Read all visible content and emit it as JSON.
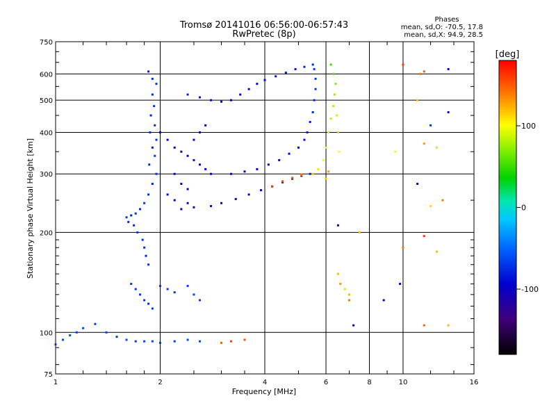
{
  "chart_data": {
    "type": "scatter",
    "title": "Tromsø 20141016 06:56:00-06:57:43",
    "subtitle": "RwPretec (8p)",
    "xlabel": "Frequency [MHz]",
    "ylabel": "Stationary phase Virtual Height [km]",
    "xscale": "log",
    "yscale": "log",
    "xlim": [
      1,
      16
    ],
    "ylim": [
      75,
      750
    ],
    "x_ticks": [
      1,
      2,
      4,
      6,
      8,
      10,
      16
    ],
    "y_ticks": [
      75,
      100,
      200,
      300,
      400,
      500,
      600,
      750
    ],
    "x_grid": [
      2,
      4,
      6,
      8,
      10
    ],
    "y_grid": [
      100,
      200,
      300,
      400,
      500,
      600
    ],
    "grid": true,
    "phases": {
      "title": "Phases",
      "o_line": "mean, sd,O: -70.5, 17.8",
      "x_line": "mean, sd,X:  94.9, 28.5"
    },
    "colorbar": {
      "label": "[deg]",
      "range": [
        -180,
        180
      ],
      "ticks": [
        100,
        0,
        -100
      ],
      "placement": "right"
    },
    "series": [
      {
        "points": [
          [
            1.85,
            610,
            -80
          ],
          [
            1.9,
            580,
            -75
          ],
          [
            1.95,
            560,
            -70
          ],
          [
            1.9,
            520,
            -78
          ],
          [
            1.92,
            480,
            -72
          ],
          [
            1.88,
            450,
            -80
          ],
          [
            1.93,
            420,
            -76
          ],
          [
            1.87,
            400,
            -70
          ],
          [
            1.95,
            380,
            -74
          ],
          [
            1.9,
            360,
            -82
          ],
          [
            1.93,
            340,
            -70
          ],
          [
            1.86,
            320,
            -78
          ],
          [
            1.95,
            300,
            -72
          ],
          [
            1.9,
            280,
            -80
          ],
          [
            1.85,
            260,
            -74
          ],
          [
            1.8,
            245,
            -70
          ],
          [
            1.75,
            235,
            -76
          ],
          [
            1.7,
            228,
            -72
          ],
          [
            1.65,
            225,
            -80
          ],
          [
            1.6,
            222,
            -70
          ],
          [
            1.62,
            215,
            -75
          ],
          [
            1.68,
            210,
            -78
          ],
          [
            1.72,
            200,
            -70
          ],
          [
            1.78,
            190,
            -74
          ],
          [
            1.8,
            180,
            -72
          ],
          [
            1.82,
            170,
            -80
          ],
          [
            1.85,
            160,
            -70
          ]
        ]
      },
      {
        "points": [
          [
            2.0,
            400,
            -90
          ],
          [
            2.1,
            380,
            -95
          ],
          [
            2.2,
            360,
            -100
          ],
          [
            2.3,
            350,
            -105
          ],
          [
            2.4,
            340,
            -100
          ],
          [
            2.5,
            330,
            -110
          ],
          [
            2.6,
            320,
            -105
          ],
          [
            2.7,
            310,
            -100
          ],
          [
            2.8,
            300,
            -95
          ],
          [
            2.5,
            380,
            -110
          ],
          [
            2.6,
            400,
            -105
          ],
          [
            2.7,
            420,
            -100
          ],
          [
            2.2,
            300,
            -90
          ],
          [
            2.3,
            280,
            -95
          ],
          [
            2.4,
            270,
            -100
          ],
          [
            2.1,
            260,
            -90
          ],
          [
            2.2,
            250,
            -95
          ],
          [
            2.4,
            245,
            -100
          ]
        ]
      },
      {
        "points": [
          [
            2.3,
            235,
            -100
          ],
          [
            2.5,
            238,
            -105
          ],
          [
            2.8,
            240,
            -110
          ],
          [
            3.0,
            245,
            -110
          ],
          [
            3.3,
            252,
            -108
          ],
          [
            3.6,
            260,
            -105
          ],
          [
            3.9,
            268,
            -100
          ],
          [
            4.2,
            275,
            -100
          ],
          [
            4.5,
            283,
            -95
          ],
          [
            4.8,
            290,
            -90
          ],
          [
            5.1,
            296,
            -85
          ],
          [
            5.4,
            300,
            -80
          ]
        ]
      },
      {
        "points": [
          [
            3.2,
            300,
            -100
          ],
          [
            3.5,
            305,
            -100
          ],
          [
            3.8,
            310,
            -95
          ],
          [
            4.1,
            320,
            -92
          ],
          [
            4.4,
            330,
            -90
          ],
          [
            4.7,
            345,
            -90
          ],
          [
            5.0,
            360,
            -88
          ],
          [
            5.2,
            380,
            -85
          ],
          [
            5.3,
            400,
            -82
          ],
          [
            5.4,
            430,
            -80
          ],
          [
            5.5,
            460,
            -78
          ],
          [
            5.55,
            500,
            -75
          ],
          [
            5.6,
            540,
            -72
          ],
          [
            5.6,
            580,
            -70
          ],
          [
            5.55,
            620,
            -68
          ]
        ]
      },
      {
        "points": [
          [
            2.4,
            520,
            -80
          ],
          [
            2.6,
            510,
            -85
          ],
          [
            2.8,
            500,
            -90
          ],
          [
            3.0,
            495,
            -90
          ],
          [
            3.2,
            500,
            -95
          ],
          [
            3.4,
            520,
            -95
          ],
          [
            3.6,
            540,
            -90
          ],
          [
            3.8,
            560,
            -92
          ],
          [
            4.0,
            575,
            -90
          ],
          [
            4.3,
            590,
            -88
          ],
          [
            4.6,
            605,
            -85
          ],
          [
            4.9,
            620,
            -85
          ],
          [
            5.2,
            630,
            -80
          ],
          [
            5.5,
            640,
            -75
          ]
        ]
      },
      {
        "points": [
          [
            4.2,
            275,
            160
          ],
          [
            4.5,
            285,
            155
          ],
          [
            4.8,
            292,
            150
          ],
          [
            5.1,
            298,
            140
          ],
          [
            5.5,
            300,
            120
          ],
          [
            5.7,
            310,
            110
          ],
          [
            5.9,
            330,
            100
          ],
          [
            6.0,
            360,
            95
          ],
          [
            6.1,
            400,
            90
          ],
          [
            6.2,
            440,
            85
          ],
          [
            6.3,
            480,
            80
          ],
          [
            6.35,
            520,
            75
          ],
          [
            6.4,
            560,
            70
          ],
          [
            6.3,
            600,
            60
          ],
          [
            6.2,
            640,
            50
          ],
          [
            6.45,
            450,
            110
          ],
          [
            6.5,
            400,
            115
          ],
          [
            6.55,
            350,
            100
          ],
          [
            6.0,
            290,
            120
          ],
          [
            6.1,
            305,
            130
          ]
        ]
      },
      {
        "points": [
          [
            1.0,
            92,
            -70
          ],
          [
            1.05,
            95,
            -65
          ],
          [
            1.1,
            98,
            -60
          ],
          [
            1.15,
            100,
            -68
          ],
          [
            1.2,
            103,
            -62
          ],
          [
            1.3,
            106,
            -70
          ],
          [
            1.4,
            100,
            -65
          ],
          [
            1.5,
            97,
            -68
          ],
          [
            1.6,
            95,
            -62
          ],
          [
            1.7,
            94,
            -70
          ],
          [
            1.8,
            94,
            -66
          ],
          [
            1.9,
            94,
            -64
          ],
          [
            2.0,
            93,
            -70
          ],
          [
            2.2,
            94,
            -68
          ],
          [
            2.4,
            95,
            -60
          ],
          [
            2.6,
            94,
            -65
          ],
          [
            3.0,
            93,
            150
          ],
          [
            3.2,
            94,
            160
          ],
          [
            3.5,
            95,
            155
          ]
        ]
      },
      {
        "points": [
          [
            1.65,
            140,
            -70
          ],
          [
            1.7,
            135,
            -72
          ],
          [
            1.75,
            130,
            -68
          ],
          [
            1.8,
            125,
            -70
          ],
          [
            1.85,
            122,
            -75
          ],
          [
            1.9,
            118,
            -72
          ],
          [
            2.0,
            138,
            -70
          ],
          [
            2.1,
            135,
            -68
          ],
          [
            2.2,
            132,
            -72
          ],
          [
            2.4,
            138,
            -70
          ],
          [
            2.5,
            130,
            -66
          ],
          [
            2.6,
            125,
            -68
          ]
        ]
      },
      {
        "points": [
          [
            6.5,
            210,
            -100
          ],
          [
            6.5,
            150,
            120
          ],
          [
            6.6,
            140,
            130
          ],
          [
            6.8,
            135,
            110
          ],
          [
            7.0,
            130,
            120
          ],
          [
            7.2,
            105,
            -90
          ],
          [
            7.0,
            125,
            140
          ],
          [
            8.8,
            125,
            -100
          ],
          [
            9.8,
            140,
            -100
          ],
          [
            11.5,
            195,
            160
          ],
          [
            12.5,
            175,
            120
          ],
          [
            11.2,
            600,
            140
          ],
          [
            11.5,
            610,
            150
          ],
          [
            10.0,
            640,
            160
          ],
          [
            13.5,
            620,
            -100
          ],
          [
            13.5,
            460,
            -110
          ],
          [
            12.0,
            420,
            -70
          ],
          [
            11.5,
            370,
            130
          ],
          [
            12.5,
            360,
            110
          ],
          [
            13.0,
            250,
            140
          ],
          [
            11.0,
            280,
            -100
          ],
          [
            12.0,
            240,
            110
          ],
          [
            9.5,
            350,
            100
          ],
          [
            7.5,
            200,
            120
          ],
          [
            10.0,
            180,
            140
          ],
          [
            11.5,
            105,
            150
          ],
          [
            13.5,
            105,
            120
          ],
          [
            11.0,
            500,
            120
          ]
        ]
      }
    ]
  }
}
